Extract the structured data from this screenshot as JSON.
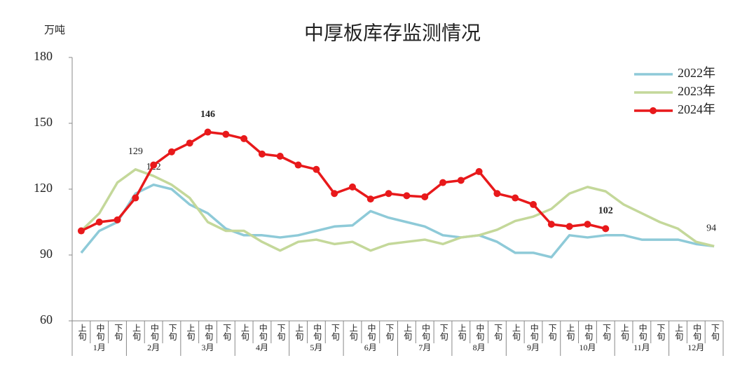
{
  "chart_data": {
    "type": "line",
    "title": "中厚板库存监测情况",
    "y_label": "万吨",
    "categories": [
      "上旬",
      "中旬",
      "下旬",
      "上旬",
      "中旬",
      "下旬",
      "上旬",
      "中旬",
      "下旬",
      "上旬",
      "中旬",
      "下旬",
      "上旬",
      "中旬",
      "下旬",
      "上旬",
      "中旬",
      "下旬",
      "上旬",
      "中旬",
      "下旬",
      "上旬",
      "中旬",
      "下旬",
      "上旬",
      "中旬",
      "下旬",
      "上旬",
      "中旬",
      "下旬",
      "上旬",
      "中旬",
      "下旬",
      "上旬",
      "中旬",
      "下旬"
    ],
    "months": [
      "1月",
      "2月",
      "3月",
      "4月",
      "5月",
      "6月",
      "7月",
      "8月",
      "9月",
      "10月",
      "11月",
      "12月"
    ],
    "ylim": [
      60,
      180
    ],
    "yticks": [
      60,
      90,
      120,
      150,
      180
    ],
    "legend": "top-right",
    "series": [
      {
        "name": "2022年",
        "color": "#8ecad8",
        "labels": [
          4
        ],
        "values": [
          91,
          101,
          105,
          118,
          122,
          120,
          113,
          109,
          102,
          99,
          99,
          98,
          99,
          101,
          103,
          103.5,
          110,
          107,
          105,
          103,
          99,
          98,
          99,
          96,
          91,
          91,
          89,
          99,
          98,
          99,
          99,
          97,
          97,
          97,
          95,
          94
        ]
      },
      {
        "name": "2023年",
        "color": "#c4d89a",
        "labels": [
          3,
          35
        ],
        "values": [
          101,
          109,
          123,
          129,
          126,
          122,
          116,
          105,
          101,
          101,
          96,
          92,
          96,
          97,
          95,
          96,
          92,
          95,
          96,
          97,
          95,
          98,
          99,
          101.5,
          105.5,
          107.5,
          111,
          118,
          121,
          119,
          113,
          109,
          105,
          102,
          96,
          94
        ]
      },
      {
        "name": "2024年",
        "color": "#e8191b",
        "labels": [
          7,
          29
        ],
        "markers": true,
        "values": [
          101,
          105,
          106,
          116,
          131,
          137,
          141,
          146,
          145,
          143,
          136,
          135,
          131,
          129,
          118,
          121,
          115.5,
          118,
          117,
          116.5,
          123,
          124,
          128,
          118,
          116,
          113,
          104,
          103,
          104,
          102,
          null,
          null,
          null,
          null,
          null,
          null
        ]
      }
    ]
  }
}
